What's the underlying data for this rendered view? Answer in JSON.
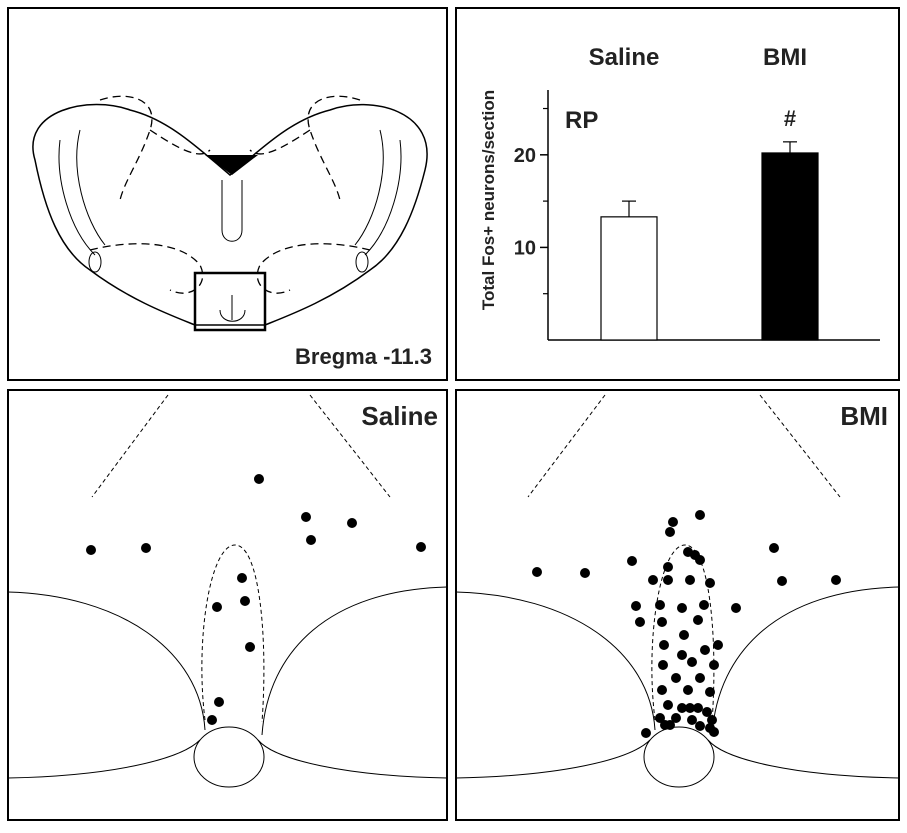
{
  "chart_data": {
    "type": "bar",
    "title": "RP",
    "annotation": "#",
    "y_label": "Total Fos+ neurons/section",
    "categories": [
      "Saline",
      "BMI"
    ],
    "values": [
      13.3,
      20.2
    ],
    "errors": [
      1.7,
      1.2
    ],
    "colors": [
      "#ffffff",
      "#000000"
    ],
    "ylim": [
      0,
      27
    ],
    "yticks": [
      10,
      20
    ],
    "minor_yticks": [
      5,
      15,
      25
    ]
  },
  "panels": {
    "section_label": "Bregma -11.3",
    "left_label": "Saline",
    "right_label": "BMI"
  }
}
